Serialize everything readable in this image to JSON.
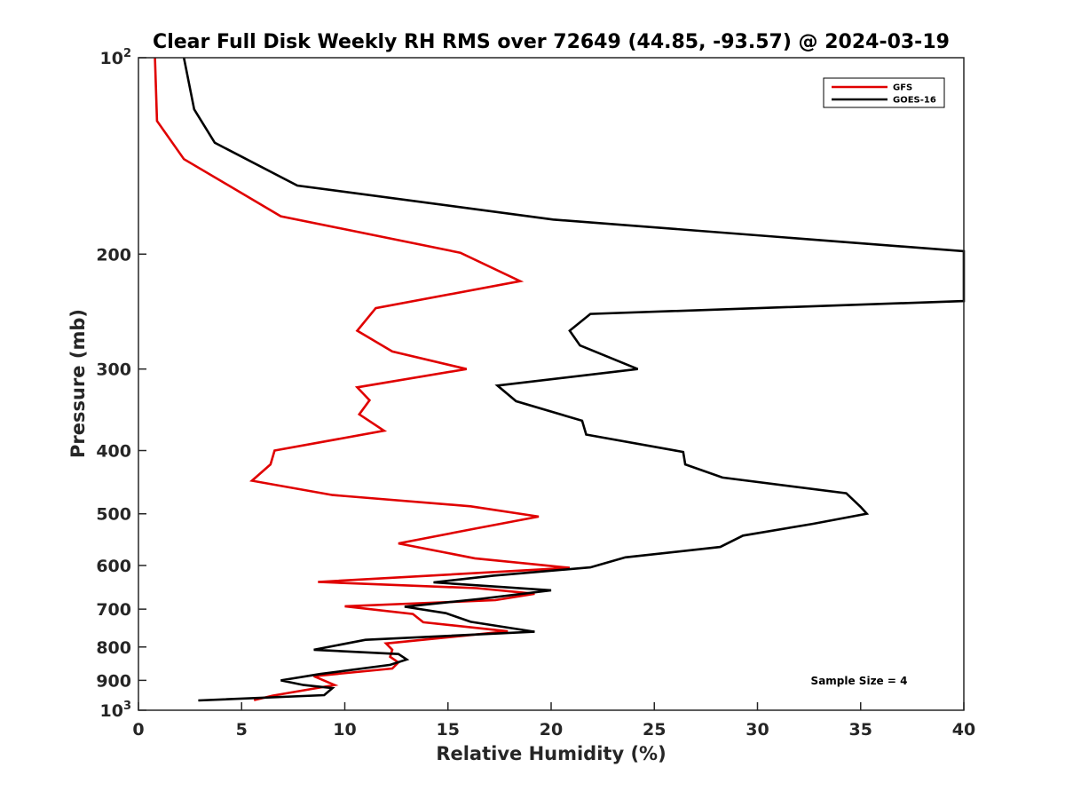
{
  "chart_data": {
    "type": "line",
    "title": "Clear Full Disk Weekly RH RMS over 72649 (44.85, -93.57) @ 2024-03-19",
    "xlabel": "Relative Humidity (%)",
    "ylabel": "Pressure (mb)",
    "xlim": [
      0,
      40
    ],
    "ylim": [
      100,
      1000
    ],
    "yscale": "log",
    "y_reversed": true,
    "grid": false,
    "legend_position": "top-right",
    "x_ticks": [
      "0",
      "5",
      "10",
      "15",
      "20",
      "25",
      "30",
      "35",
      "40"
    ],
    "y_ticks": [
      {
        "value": 100,
        "base": "10",
        "exp": "2"
      },
      {
        "value": 200,
        "label": "200"
      },
      {
        "value": 300,
        "label": "300"
      },
      {
        "value": 400,
        "label": "400"
      },
      {
        "value": 500,
        "label": "500"
      },
      {
        "value": 600,
        "label": "600"
      },
      {
        "value": 700,
        "label": "700"
      },
      {
        "value": 800,
        "label": "800"
      },
      {
        "value": 900,
        "label": "900"
      },
      {
        "value": 1000,
        "base": "10",
        "exp": "3"
      }
    ],
    "annotation": "Sample Size = 4",
    "series": [
      {
        "name": "GFS",
        "color": "#e00000",
        "points": [
          [
            0.8,
            100
          ],
          [
            0.9,
            125
          ],
          [
            2.2,
            143
          ],
          [
            6.9,
            175
          ],
          [
            15.6,
            199
          ],
          [
            18.5,
            220
          ],
          [
            11.5,
            242
          ],
          [
            10.6,
            262
          ],
          [
            12.3,
            282
          ],
          [
            15.9,
            300
          ],
          [
            10.6,
            320
          ],
          [
            11.2,
            335
          ],
          [
            10.7,
            352
          ],
          [
            11.9,
            373
          ],
          [
            6.6,
            400
          ],
          [
            6.4,
            420
          ],
          [
            5.5,
            445
          ],
          [
            9.4,
            468
          ],
          [
            16.1,
            487
          ],
          [
            19.4,
            505
          ],
          [
            16.3,
            527
          ],
          [
            12.6,
            555
          ],
          [
            16.3,
            585
          ],
          [
            20.9,
            605
          ],
          [
            8.7,
            636
          ],
          [
            16.4,
            650
          ],
          [
            19.2,
            663
          ],
          [
            17.3,
            678
          ],
          [
            10.0,
            693
          ],
          [
            13.3,
            712
          ],
          [
            13.8,
            733
          ],
          [
            17.9,
            757
          ],
          [
            12.0,
            790
          ],
          [
            12.3,
            808
          ],
          [
            12.2,
            828
          ],
          [
            12.6,
            845
          ],
          [
            12.3,
            863
          ],
          [
            8.5,
            887
          ],
          [
            9.5,
            915
          ],
          [
            6.5,
            950
          ],
          [
            5.6,
            965
          ]
        ]
      },
      {
        "name": "GOES-16",
        "color": "#000000",
        "points": [
          [
            2.2,
            100
          ],
          [
            2.7,
            120
          ],
          [
            3.7,
            135
          ],
          [
            7.7,
            157
          ],
          [
            20.1,
            177
          ],
          [
            40.0,
            198
          ],
          [
            40.0,
            236
          ],
          [
            21.9,
            247
          ],
          [
            20.9,
            262
          ],
          [
            21.4,
            276
          ],
          [
            24.2,
            300
          ],
          [
            17.4,
            318
          ],
          [
            18.3,
            336
          ],
          [
            21.5,
            360
          ],
          [
            21.7,
            378
          ],
          [
            26.4,
            402
          ],
          [
            26.5,
            420
          ],
          [
            28.3,
            440
          ],
          [
            34.3,
            465
          ],
          [
            35.0,
            488
          ],
          [
            35.3,
            500
          ],
          [
            32.7,
            518
          ],
          [
            29.3,
            540
          ],
          [
            28.2,
            562
          ],
          [
            23.6,
            583
          ],
          [
            21.9,
            604
          ],
          [
            17.2,
            622
          ],
          [
            14.3,
            637
          ],
          [
            20.0,
            655
          ],
          [
            16.6,
            675
          ],
          [
            12.9,
            694
          ],
          [
            14.9,
            710
          ],
          [
            16.1,
            732
          ],
          [
            19.2,
            758
          ],
          [
            11.0,
            780
          ],
          [
            8.5,
            808
          ],
          [
            12.6,
            820
          ],
          [
            13.0,
            836
          ],
          [
            12.2,
            852
          ],
          [
            8.8,
            880
          ],
          [
            6.9,
            900
          ],
          [
            8.0,
            915
          ],
          [
            9.4,
            925
          ],
          [
            9.0,
            948
          ],
          [
            2.9,
            966
          ]
        ]
      }
    ]
  }
}
